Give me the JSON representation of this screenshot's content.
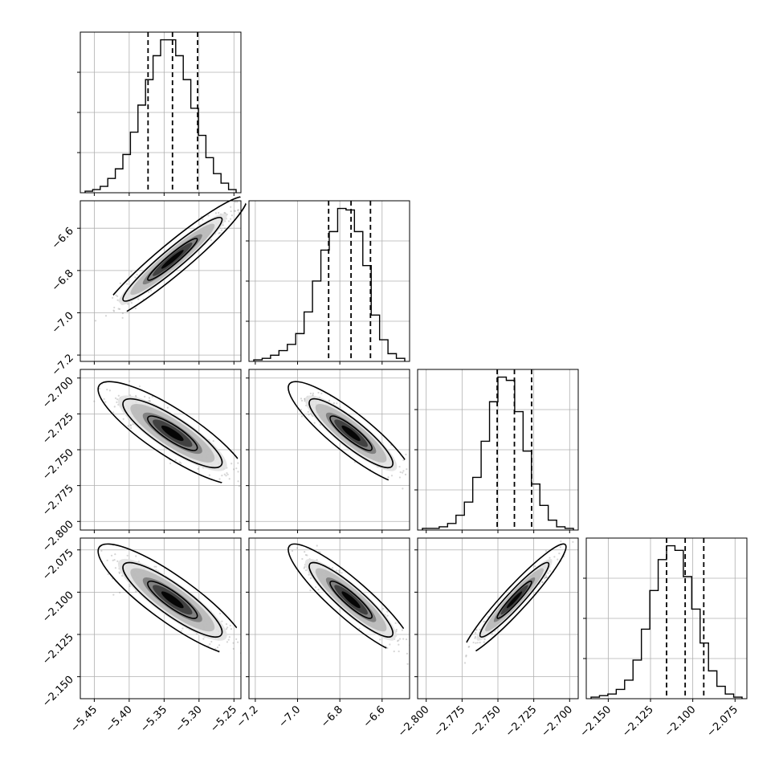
{
  "chart_data": {
    "type": "corner",
    "grid": true,
    "colors": {
      "line": "#000000",
      "grid": "#b0b0b0",
      "scatter": "#888888"
    },
    "parameters": [
      {
        "index": 0,
        "range": [
          -5.47,
          -5.24
        ],
        "ticks": [
          -5.45,
          -5.4,
          -5.35,
          -5.3,
          -5.25
        ],
        "tick_labels": [
          "−5.45",
          "−5.40",
          "−5.35",
          "−5.30",
          "−5.25"
        ],
        "quantiles": [
          -5.373,
          -5.338,
          -5.302
        ],
        "hist": [
          1,
          2,
          4,
          9,
          15,
          24,
          38,
          55,
          71,
          86,
          96,
          96,
          86,
          71,
          53,
          36,
          22,
          12,
          6,
          2
        ]
      },
      {
        "index": 1,
        "range": [
          -7.23,
          -6.47
        ],
        "ticks": [
          -7.2,
          -7.0,
          -6.8,
          -6.6
        ],
        "tick_labels": [
          "−7.2",
          "−7.0",
          "−6.8",
          "−6.6"
        ],
        "quantiles": [
          -6.853,
          -6.747,
          -6.655
        ],
        "hist": [
          1,
          2,
          4,
          7,
          11,
          18,
          32,
          52,
          72,
          84,
          99,
          98,
          84,
          62,
          30,
          14,
          5,
          2
        ]
      },
      {
        "index": 2,
        "range": [
          -2.806,
          -2.694
        ],
        "ticks": [
          -2.8,
          -2.775,
          -2.75,
          -2.725,
          -2.7
        ],
        "tick_labels": [
          "−2.800",
          "−2.775",
          "−2.750",
          "−2.725",
          "−2.700"
        ],
        "y_tick_labels": [
          "−2.700",
          "−2.725",
          "−2.750",
          "−2.775",
          "−2.800"
        ],
        "quantiles": [
          -2.7505,
          -2.7385,
          -2.7265
        ],
        "hist": [
          1,
          1,
          2,
          4,
          9,
          17,
          32,
          54,
          78,
          93,
          91,
          72,
          48,
          28,
          15,
          6,
          2,
          1
        ]
      },
      {
        "index": 3,
        "range": [
          -2.163,
          -2.068
        ],
        "ticks": [
          -2.15,
          -2.125,
          -2.1,
          -2.075
        ],
        "tick_labels": [
          "−2.150",
          "−2.125",
          "−2.100",
          "−2.075"
        ],
        "y_tick_labels": [
          "−2.075",
          "−2.100",
          "−2.125",
          "−2.150"
        ],
        "quantiles": [
          -2.1155,
          -2.1045,
          -2.0935
        ],
        "hist": [
          1,
          2,
          3,
          6,
          12,
          25,
          45,
          70,
          90,
          99,
          96,
          79,
          58,
          36,
          18,
          8,
          3,
          1
        ]
      }
    ],
    "correlations": [
      {
        "row": 1,
        "col": 0,
        "rho": 0.95
      },
      {
        "row": 2,
        "col": 0,
        "rho": -0.85
      },
      {
        "row": 2,
        "col": 1,
        "rho": -0.88
      },
      {
        "row": 3,
        "col": 0,
        "rho": -0.87
      },
      {
        "row": 3,
        "col": 1,
        "rho": -0.9
      },
      {
        "row": 3,
        "col": 2,
        "rho": 0.95
      }
    ]
  }
}
